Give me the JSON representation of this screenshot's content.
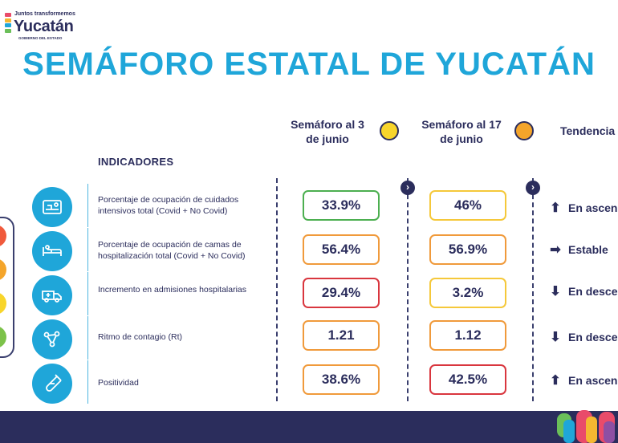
{
  "logo": {
    "line1": "Juntos transformemos",
    "line2": "Yucatán",
    "line3": "GOBIERNO DEL ESTADO"
  },
  "title": "SEMÁFORO ESTATAL DE YUCATÁN",
  "columns": {
    "col1": "Semáforo al 3 de junio",
    "col2": "Semáforo al 17 de junio",
    "col3": "Tendencia"
  },
  "indicators_label": "INDICADORES",
  "colors": {
    "green": "#4caf50",
    "yellow": "#f5c83a",
    "orange": "#f09a3b",
    "red": "#d9363e",
    "navy": "#2b2d5c",
    "blue": "#1fa6d9"
  },
  "rows": [
    {
      "label": "Porcentaje de ocupación de cuidados intensivos total (Covid + No Covid)",
      "icon": "icu-bed-icon",
      "v1": "33.9%",
      "c1": "green",
      "v2": "46%",
      "c2": "yellow",
      "trend": "En ascenso",
      "trend_icon": "arrow-up-icon"
    },
    {
      "label": "Porcentaje de ocupación de camas de hospitalización total (Covid + No Covid)",
      "icon": "hospital-bed-icon",
      "v1": "56.4%",
      "c1": "orange",
      "v2": "56.9%",
      "c2": "orange",
      "trend": "Estable",
      "trend_icon": "arrow-right-icon"
    },
    {
      "label": "Incremento en admisiones hospitalarias",
      "icon": "ambulance-icon",
      "v1": "29.4%",
      "c1": "red",
      "v2": "3.2%",
      "c2": "yellow",
      "trend": "En descenso",
      "trend_icon": "arrow-down-icon"
    },
    {
      "label": "Ritmo de contagio (Rt)",
      "icon": "contagion-icon",
      "v1": "1.21",
      "c1": "orange",
      "v2": "1.12",
      "c2": "orange",
      "trend": "En descenso",
      "trend_icon": "arrow-down-icon"
    },
    {
      "label": "Positividad",
      "icon": "test-tube-icon",
      "v1": "38.6%",
      "c1": "orange",
      "v2": "42.5%",
      "c2": "red",
      "trend": "En ascenso",
      "trend_icon": "arrow-up-icon"
    }
  ]
}
